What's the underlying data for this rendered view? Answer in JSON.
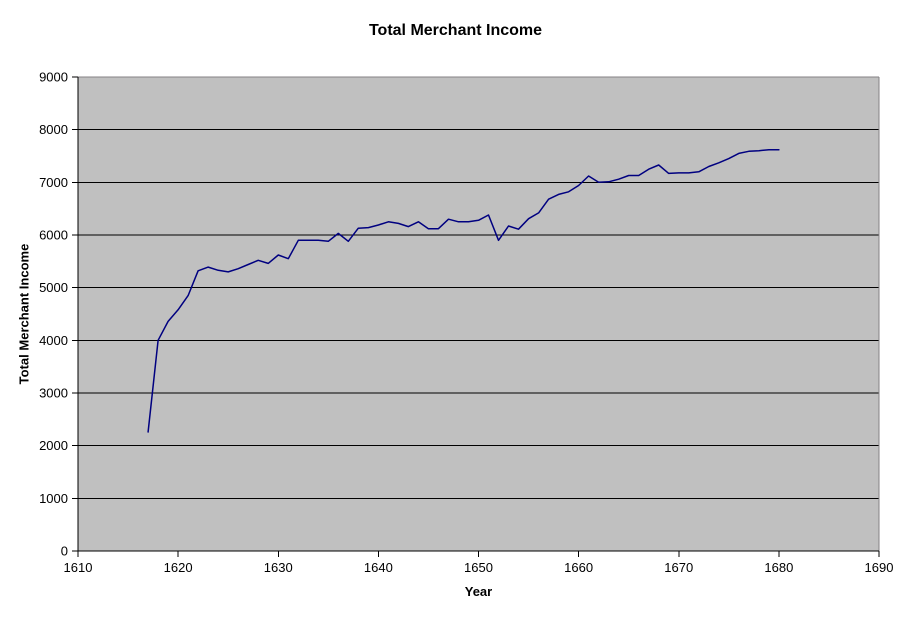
{
  "page": {
    "background": "#ffffff"
  },
  "chart_data": {
    "type": "line",
    "title": "Total Merchant Income",
    "xlabel": "Year",
    "ylabel": "Total Merchant Income",
    "xlim": [
      1610,
      1690
    ],
    "ylim": [
      0,
      9000
    ],
    "x_ticks": [
      1610,
      1620,
      1630,
      1640,
      1650,
      1660,
      1670,
      1680,
      1690
    ],
    "y_ticks": [
      0,
      1000,
      2000,
      3000,
      4000,
      5000,
      6000,
      7000,
      8000,
      9000
    ],
    "grid": "horizontal",
    "legend": "none",
    "colors": {
      "plot_bg": "#c0c0c0",
      "plot_border": "#848284",
      "gridline": "#000000",
      "axis": "#000000",
      "text": "#000000"
    },
    "series": [
      {
        "name": "Total Merchant Income",
        "color": "#000080",
        "x": [
          1617,
          1618,
          1619,
          1620,
          1621,
          1622,
          1623,
          1624,
          1625,
          1626,
          1627,
          1628,
          1629,
          1630,
          1631,
          1632,
          1633,
          1634,
          1635,
          1636,
          1637,
          1638,
          1639,
          1640,
          1641,
          1642,
          1643,
          1644,
          1645,
          1646,
          1647,
          1648,
          1649,
          1650,
          1651,
          1652,
          1653,
          1654,
          1655,
          1656,
          1657,
          1658,
          1659,
          1660,
          1661,
          1662,
          1663,
          1664,
          1665,
          1666,
          1667,
          1668,
          1669,
          1670,
          1671,
          1672,
          1673,
          1674,
          1675,
          1676,
          1677,
          1678,
          1679,
          1680
        ],
        "y": [
          2260,
          4000,
          4360,
          4580,
          4850,
          5320,
          5390,
          5330,
          5300,
          5360,
          5440,
          5520,
          5460,
          5620,
          5550,
          5900,
          5900,
          5900,
          5880,
          6030,
          5880,
          6130,
          6140,
          6190,
          6250,
          6220,
          6160,
          6250,
          6120,
          6120,
          6300,
          6250,
          6250,
          6280,
          6380,
          5900,
          6170,
          6110,
          6310,
          6420,
          6680,
          6770,
          6820,
          6940,
          7120,
          7000,
          7010,
          7060,
          7130,
          7130,
          7250,
          7330,
          7170,
          7180,
          7180,
          7200,
          7300,
          7370,
          7450,
          7550,
          7590,
          7600,
          7620,
          7620
        ]
      }
    ]
  }
}
